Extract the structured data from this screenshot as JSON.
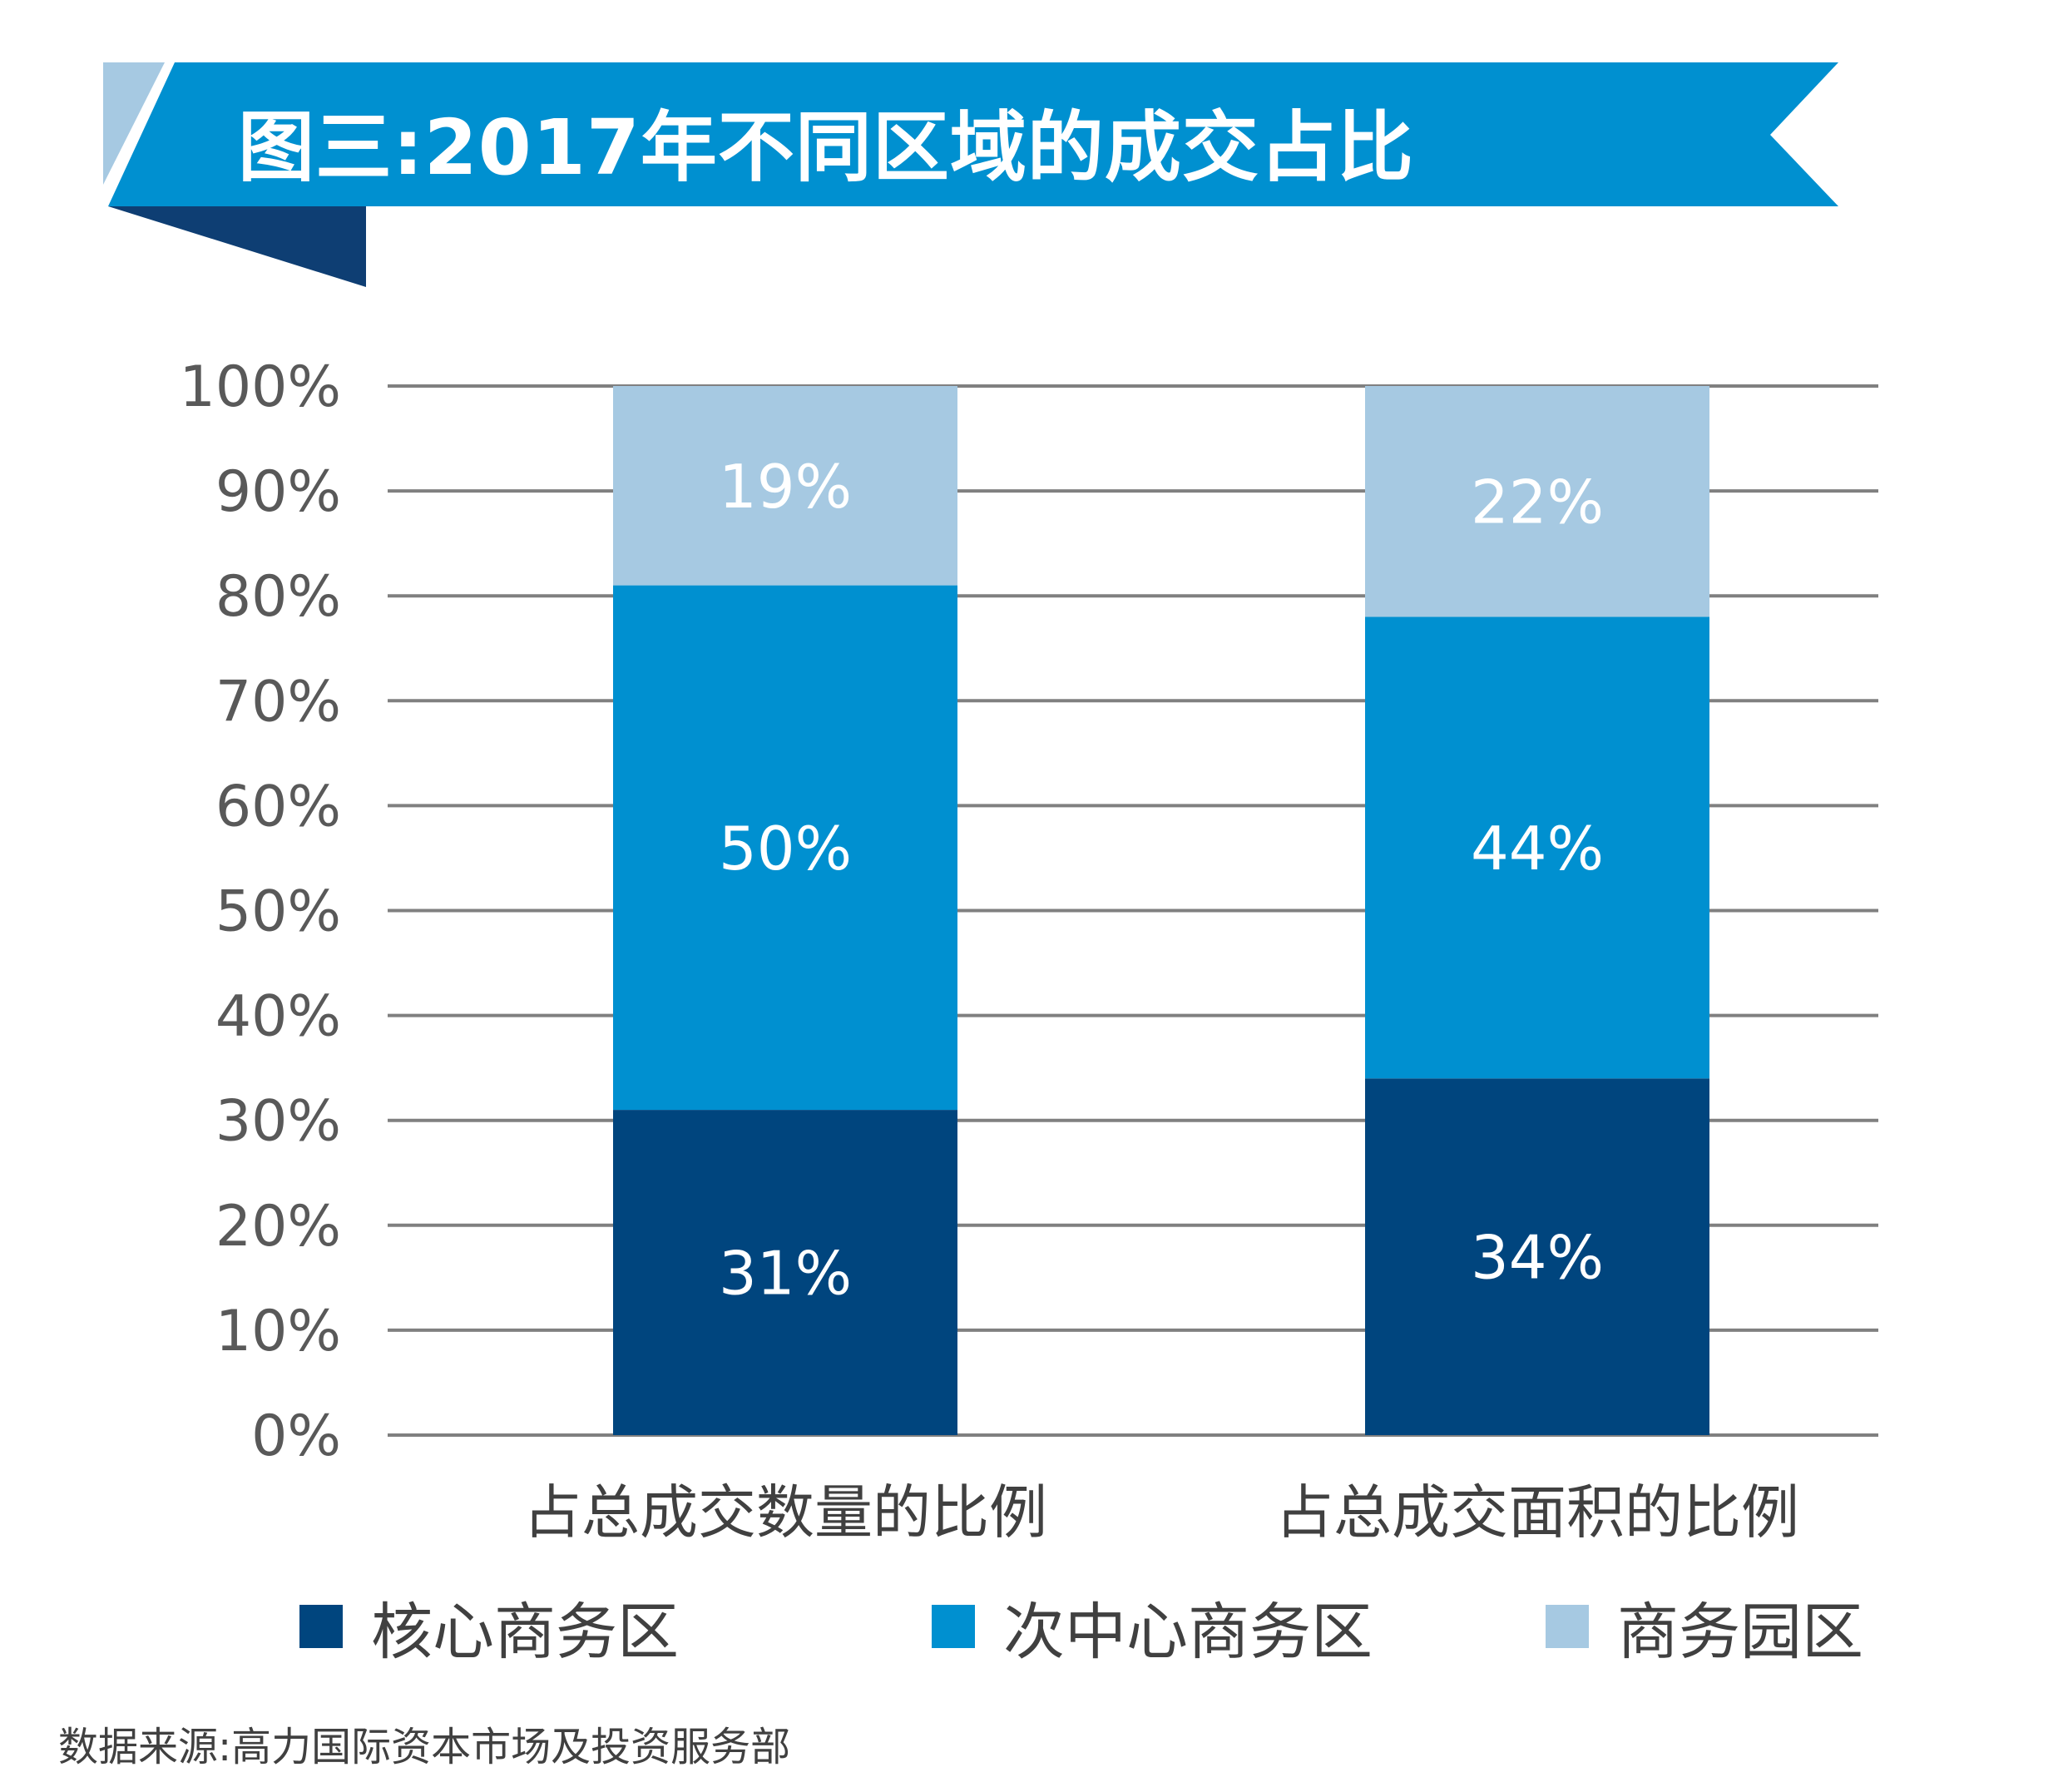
{
  "title": "图三:2017年不同区域的成交占比",
  "source": "数据来源:高力国际资本市场及投资服务部",
  "colors": {
    "banner_main": "#0090D0",
    "banner_light": "#A6C9E2",
    "banner_dark": "#0E3E73",
    "grid": "#808080"
  },
  "chart_data": {
    "type": "bar",
    "stacked": true,
    "categories": [
      "占总成交数量的比例",
      "占总成交面积的比例"
    ],
    "series": [
      {
        "name": "核心商务区",
        "values": [
          31,
          34
        ],
        "labels": [
          "31%",
          "34%"
        ],
        "color": "#00457E"
      },
      {
        "name": "次中心商务区",
        "values": [
          50,
          44
        ],
        "labels": [
          "50%",
          "44%"
        ],
        "color": "#0090D0"
      },
      {
        "name": "商务园区",
        "values": [
          19,
          22
        ],
        "labels": [
          "19%",
          "22%"
        ],
        "color": "#A6C9E2"
      }
    ],
    "yticks": [
      0,
      10,
      20,
      30,
      40,
      50,
      60,
      70,
      80,
      90,
      100
    ],
    "ytick_labels": [
      "0%",
      "10%",
      "20%",
      "30%",
      "40%",
      "50%",
      "60%",
      "70%",
      "80%",
      "90%",
      "100%"
    ],
    "ylim": [
      0,
      100
    ],
    "grid": true,
    "legend": "bottom"
  }
}
